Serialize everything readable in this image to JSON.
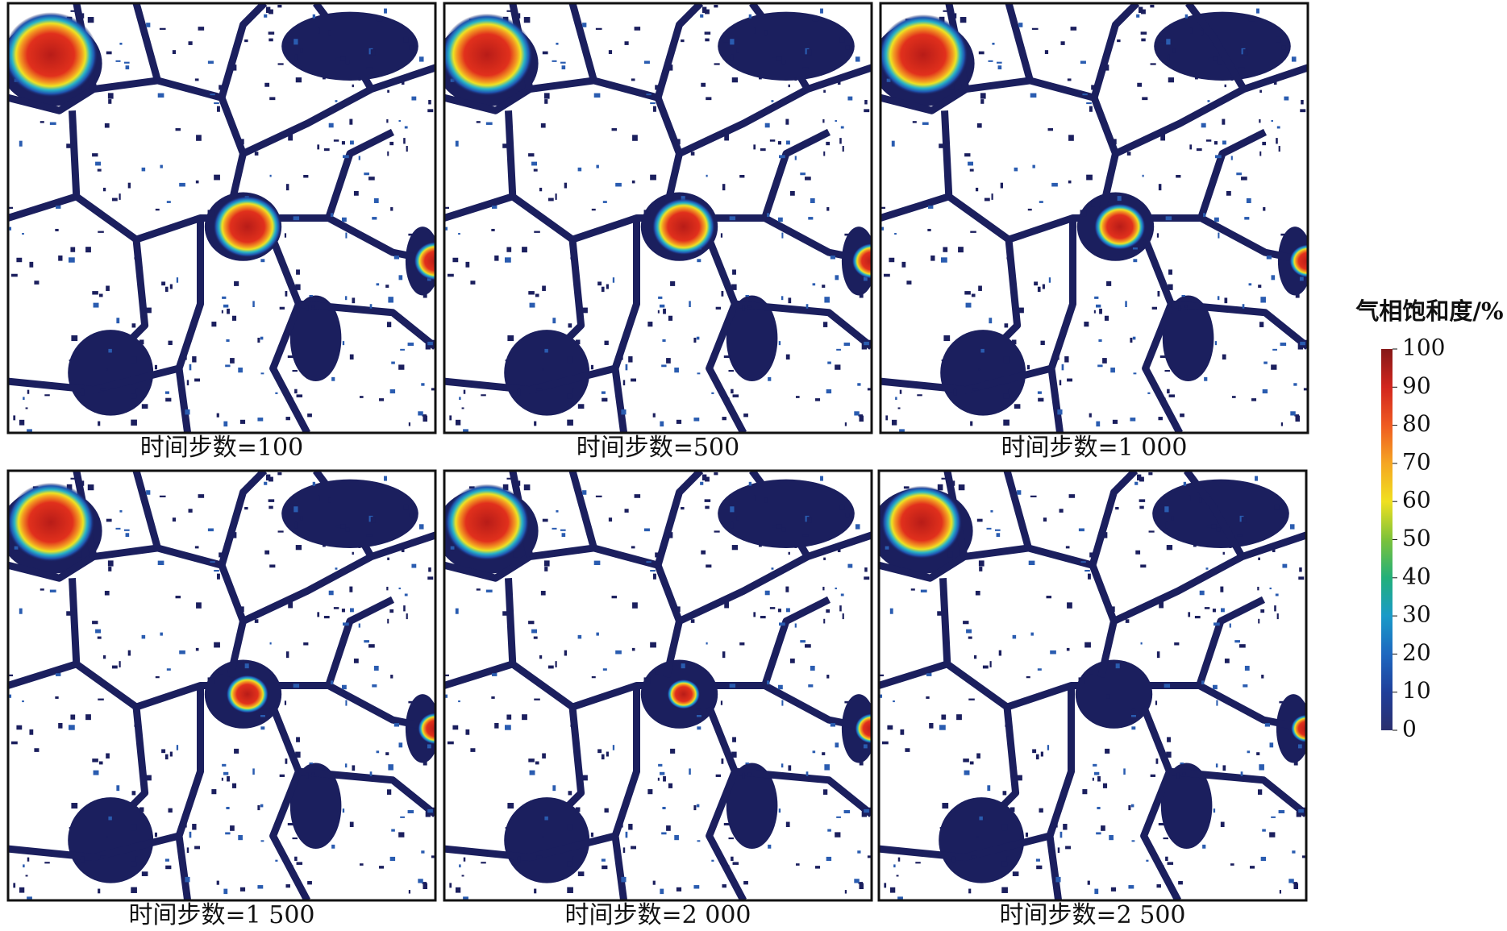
{
  "panels": [
    {
      "caption": "时间步数=100"
    },
    {
      "caption": "时间步数=500"
    },
    {
      "caption": "时间步数=1 000"
    },
    {
      "caption": "时间步数=1 500"
    },
    {
      "caption": "时间步数=2 000"
    },
    {
      "caption": "时间步数=2 500"
    }
  ],
  "colorbar": {
    "title": "气相饱和度/%",
    "ticks": [
      0,
      10,
      20,
      30,
      40,
      50,
      60,
      70,
      80,
      90,
      100
    ]
  }
}
